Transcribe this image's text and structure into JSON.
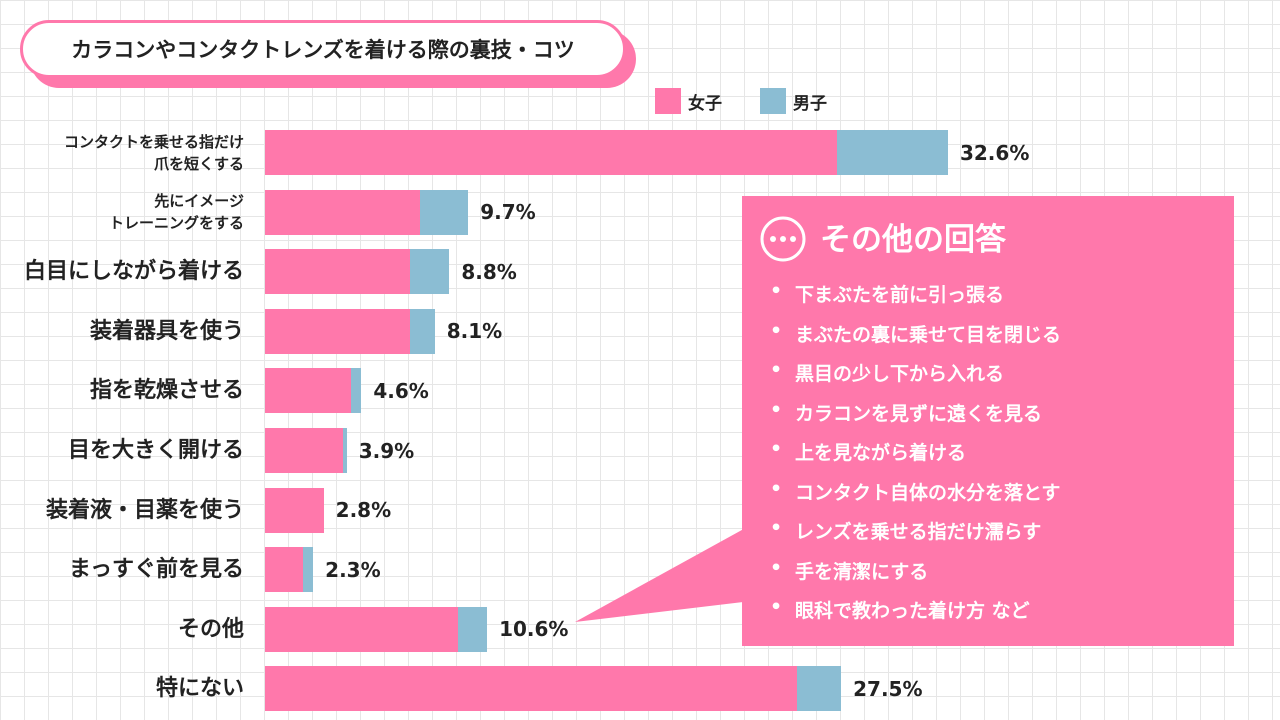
{
  "chart_data": {
    "type": "stacked-bar-horizontal",
    "title": "カラコンやコンタクトレンズを着ける際の裏技・コツ",
    "categories": [
      "コンタクトを乗せる指だけ\n爪を短くする",
      "先にイメージ\nトレーニングをする",
      "白目にしながら着ける",
      "装着器具を使う",
      "指を乾燥させる",
      "目を大きく開ける",
      "装着液・目薬を使う",
      "まっすぐ前を見る",
      "その他",
      "特にない"
    ],
    "series": [
      {
        "name": "女子",
        "color": "#ff78ab",
        "values": [
          27.3,
          7.4,
          6.9,
          6.9,
          4.1,
          3.7,
          2.8,
          1.8,
          9.2,
          25.4
        ]
      },
      {
        "name": "男子",
        "color": "#8bbdd3",
        "values": [
          5.3,
          2.3,
          1.9,
          1.2,
          0.5,
          0.2,
          0,
          0.5,
          1.4,
          2.1
        ]
      }
    ],
    "totals": [
      32.6,
      9.7,
      8.8,
      8.1,
      4.6,
      3.9,
      2.8,
      2.3,
      10.6,
      27.5
    ],
    "total_labels": [
      "32.6%",
      "9.7%",
      "8.8%",
      "8.1%",
      "4.6%",
      "3.9%",
      "2.8%",
      "2.3%",
      "10.6%",
      "27.5%"
    ],
    "xlim": [
      0,
      40
    ],
    "callout": {
      "title": "その他の回答",
      "items": [
        "下まぶたを前に引っ張る",
        "まぶたの裏に乗せて目を閉じる",
        "黒目の少し下から入れる",
        "カラコンを見ずに遠くを見る",
        "上を見ながら着ける",
        "コンタクト自体の水分を落とす",
        "レンズを乗せる指だけ濡らす",
        "手を清潔にする",
        "眼科で教わった着け方 など"
      ]
    }
  }
}
